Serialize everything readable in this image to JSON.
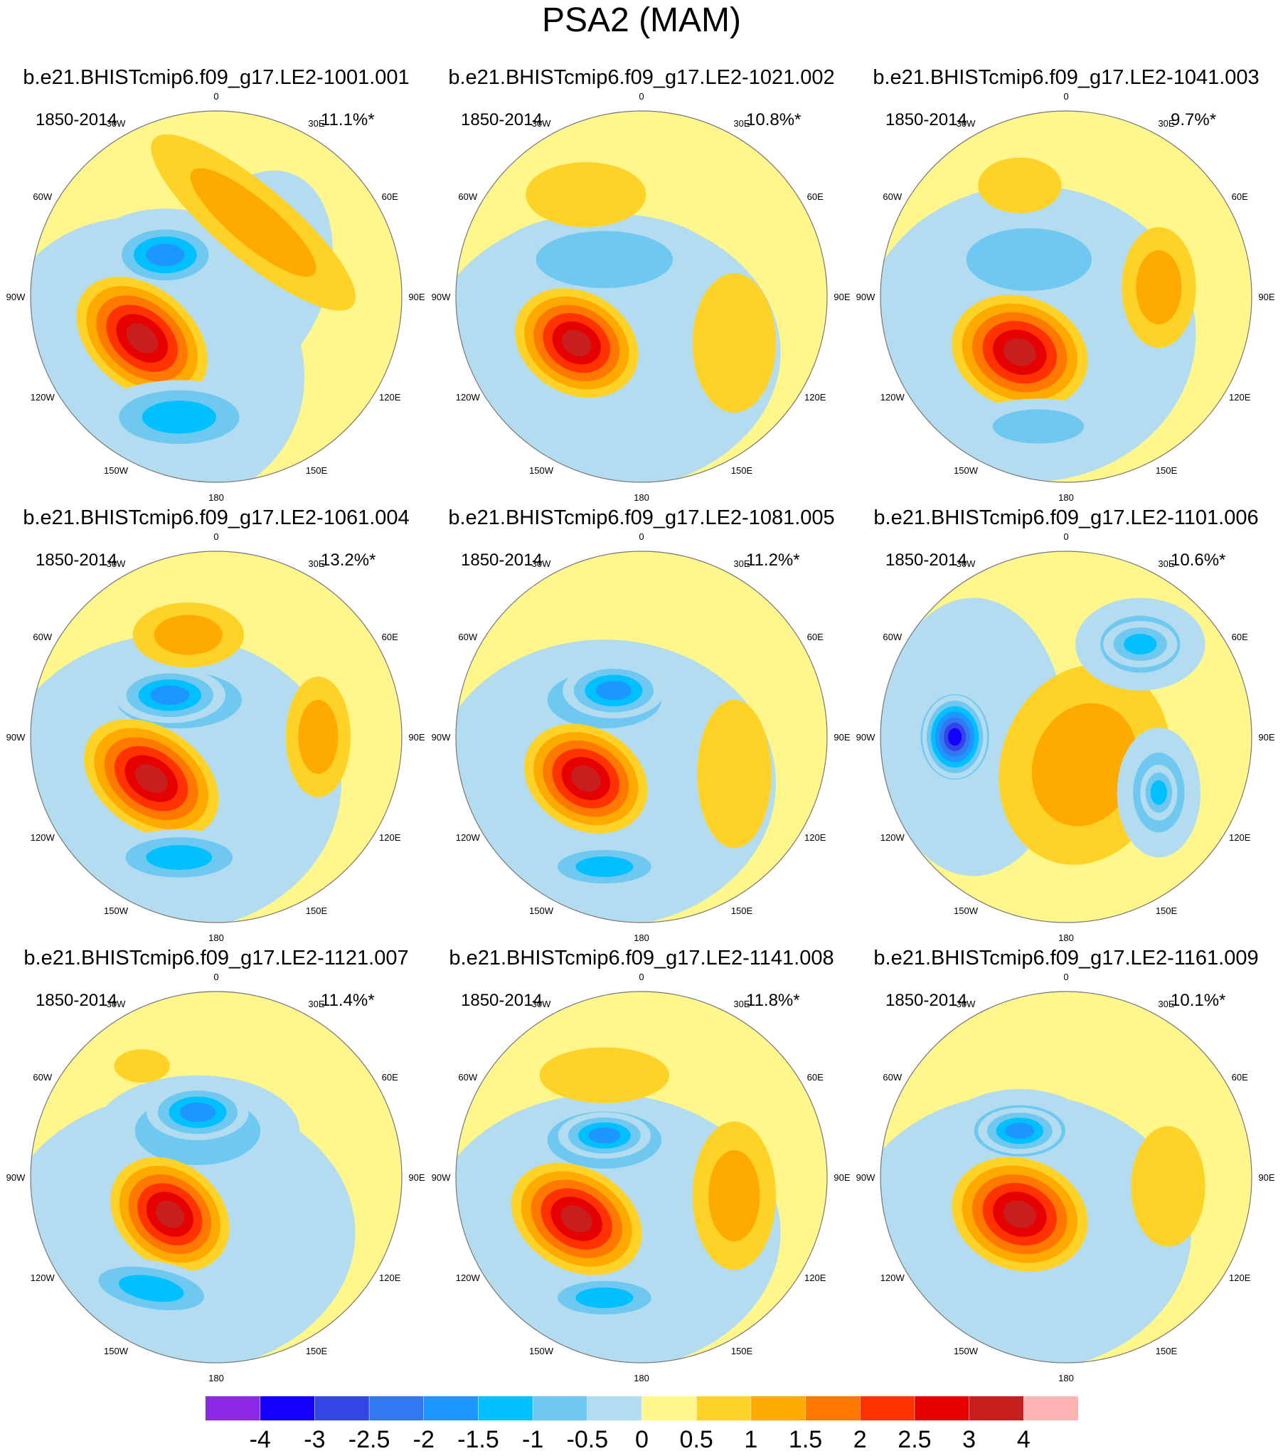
{
  "figure": {
    "title": "PSA2 (MAM)",
    "panels": [
      {
        "title": "b.e21.BHISTcmip6.f09_g17.LE2-1001.001",
        "period": "1850-2014",
        "percent": "11.1%*"
      },
      {
        "title": "b.e21.BHISTcmip6.f09_g17.LE2-1021.002",
        "period": "1850-2014",
        "percent": "10.8%*"
      },
      {
        "title": "b.e21.BHISTcmip6.f09_g17.LE2-1041.003",
        "period": "1850-2014",
        "percent": "9.7%*"
      },
      {
        "title": "b.e21.BHISTcmip6.f09_g17.LE2-1061.004",
        "period": "1850-2014",
        "percent": "13.2%*"
      },
      {
        "title": "b.e21.BHISTcmip6.f09_g17.LE2-1081.005",
        "period": "1850-2014",
        "percent": "11.2%*"
      },
      {
        "title": "b.e21.BHISTcmip6.f09_g17.LE2-1101.006",
        "period": "1850-2014",
        "percent": "10.6%*"
      },
      {
        "title": "b.e21.BHISTcmip6.f09_g17.LE2-1121.007",
        "period": "1850-2014",
        "percent": "11.4%*"
      },
      {
        "title": "b.e21.BHISTcmip6.f09_g17.LE2-1141.008",
        "period": "1850-2014",
        "percent": "11.8%*"
      },
      {
        "title": "b.e21.BHISTcmip6.f09_g17.LE2-1161.009",
        "period": "1850-2014",
        "percent": "10.1%*"
      }
    ],
    "longitude_labels": [
      "0",
      "30E",
      "60E",
      "90E",
      "120E",
      "150E",
      "180",
      "150W",
      "120W",
      "90W",
      "60W",
      "30W"
    ],
    "colorbar": {
      "levels": [
        -4,
        -3,
        -2.5,
        -2,
        -1.5,
        -1,
        -0.5,
        0,
        0.5,
        1,
        1.5,
        2,
        2.5,
        3,
        4
      ],
      "colors": [
        "#8c28e6",
        "#1400ff",
        "#3246e6",
        "#3278f0",
        "#1e96ff",
        "#00c0ff",
        "#6ec8f0",
        "#b4dcf0",
        "#fff68c",
        "#ffd228",
        "#ffaa00",
        "#ff7800",
        "#ff3200",
        "#e60000",
        "#c81e1e",
        "#ffb4b4"
      ]
    }
  }
}
